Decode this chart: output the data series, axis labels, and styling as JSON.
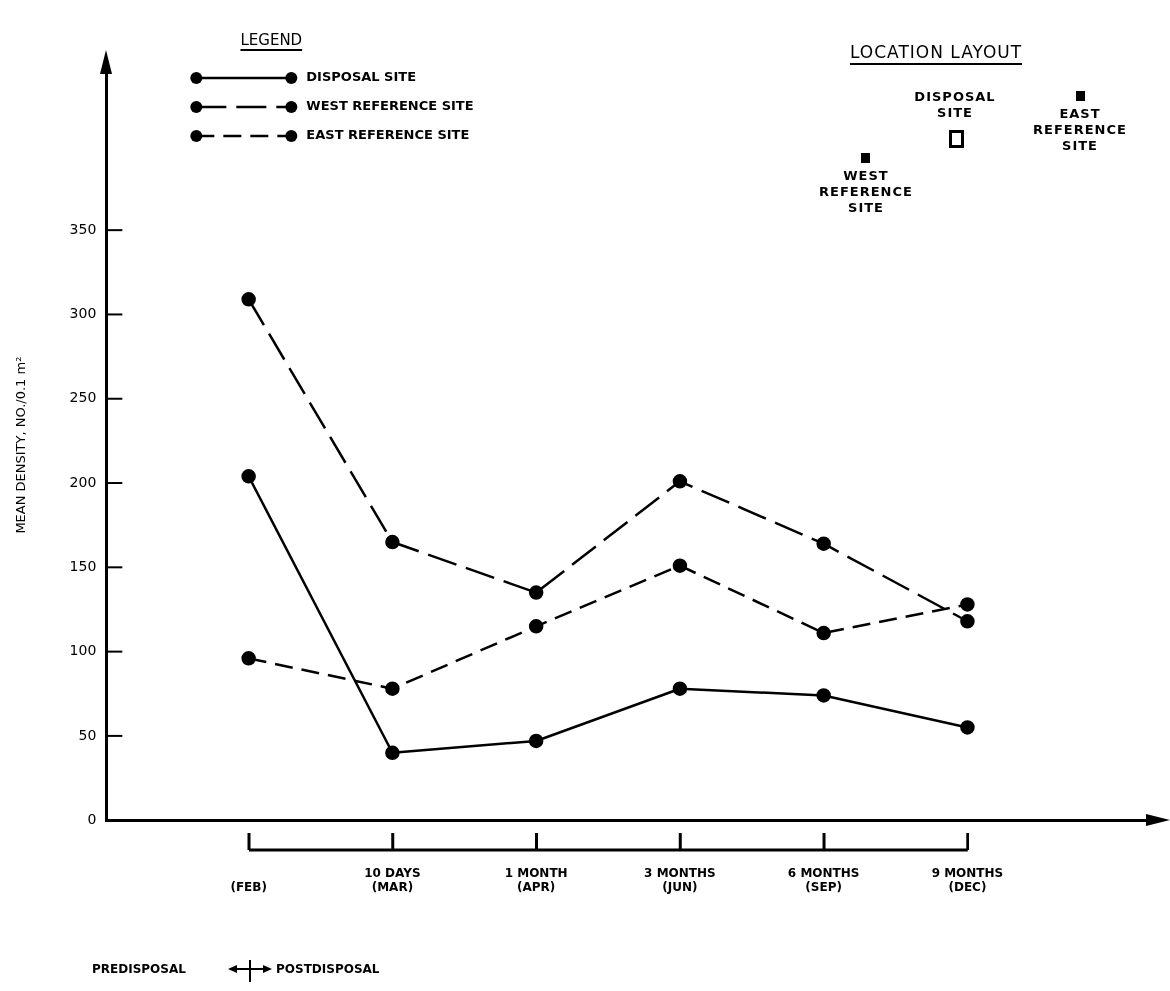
{
  "chart_data": {
    "type": "line",
    "ylabel": "MEAN DENSITY, NO./0.1 m²",
    "legend_title": "LEGEND",
    "categories": [
      "\n(FEB)",
      "10 DAYS\n(MAR)",
      "1 MONTH\n(APR)",
      "3 MONTHS\n(JUN)",
      "6 MONTHS\n(SEP)",
      "9 MONTHS\n(DEC)"
    ],
    "series": [
      {
        "name": "DISPOSAL SITE",
        "color": "#000000",
        "line_style": "solid",
        "values": [
          204,
          40,
          47,
          78,
          74,
          55
        ]
      },
      {
        "name": "WEST REFERENCE SITE",
        "color": "#000000",
        "line_style": "dashed",
        "values": [
          309,
          165,
          135,
          201,
          164,
          118
        ]
      },
      {
        "name": "EAST REFERENCE SITE",
        "color": "#000000",
        "line_style": "dashed",
        "values": [
          96,
          78,
          115,
          151,
          111,
          128
        ]
      }
    ],
    "ylim": [
      0,
      445
    ],
    "yticks": [
      0,
      50,
      100,
      150,
      200,
      250,
      300,
      350
    ],
    "grid": false,
    "legend": "top left",
    "marker": "circle",
    "annotations": [
      "LOCATION LAYOUT",
      "DISPOSAL SITE",
      "WEST REFERENCE SITE",
      "EAST REFERENCE SITE",
      "PREDISPOSAL",
      "POSTDISPOSAL"
    ]
  }
}
